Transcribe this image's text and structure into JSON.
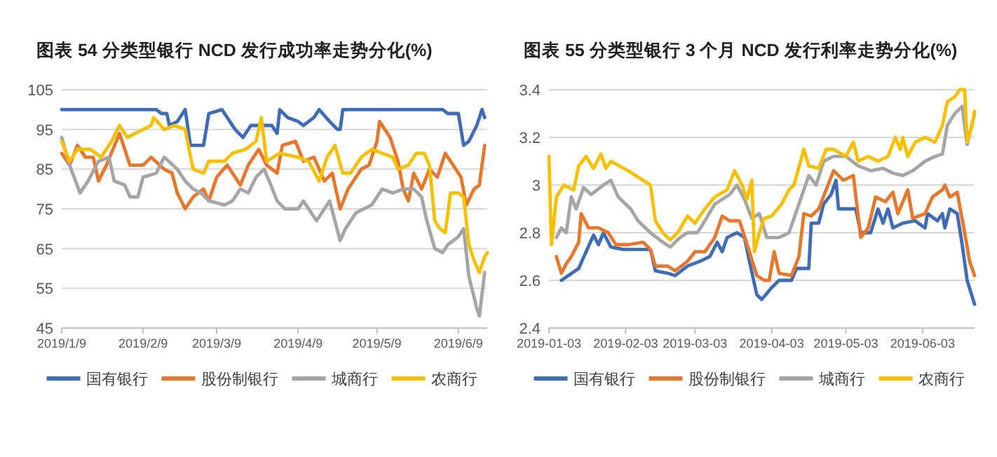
{
  "chart_data": [
    {
      "type": "line",
      "title": "图表 54 分类型银行 NCD 发行成功率走势分化(%)",
      "xlim": [
        "2019-01-09",
        "2019-06-20"
      ],
      "xticks": [
        {
          "value": "2019-01-09",
          "label": "2019/1/9"
        },
        {
          "value": "2019-02-09",
          "label": "2019/2/9"
        },
        {
          "value": "2019-03-09",
          "label": "2019/3/9"
        },
        {
          "value": "2019-04-09",
          "label": "2019/4/9"
        },
        {
          "value": "2019-05-09",
          "label": "2019/5/9"
        },
        {
          "value": "2019-06-09",
          "label": "2019/6/9"
        }
      ],
      "ylim": [
        45,
        105
      ],
      "yticks": [
        45,
        55,
        65,
        75,
        85,
        95,
        105
      ],
      "grid": "y",
      "legend": "bottom",
      "line_style": "solid",
      "marker": "none",
      "series": [
        {
          "name": "国有银行",
          "color": "#3f6cb5",
          "x": [
            "2019-01-09",
            "2019-02-14",
            "2019-02-16",
            "2019-02-18",
            "2019-02-19",
            "2019-02-22",
            "2019-02-25",
            "2019-02-27",
            "2019-03-04",
            "2019-03-06",
            "2019-03-11",
            "2019-03-16",
            "2019-03-19",
            "2019-03-22",
            "2019-03-30",
            "2019-04-01",
            "2019-04-02",
            "2019-04-05",
            "2019-04-09",
            "2019-04-11",
            "2019-04-15",
            "2019-04-17",
            "2019-04-21",
            "2019-04-24",
            "2019-04-25",
            "2019-04-26",
            "2019-06-03",
            "2019-06-05",
            "2019-06-09",
            "2019-06-11",
            "2019-06-13",
            "2019-06-16",
            "2019-06-18",
            "2019-06-19"
          ],
          "values": [
            100,
            100,
            99,
            99,
            96,
            97,
            100,
            91,
            91,
            99,
            100,
            95,
            93,
            96,
            96,
            94,
            100,
            98,
            97,
            96,
            98,
            100,
            97,
            95,
            95,
            100,
            100,
            99,
            99,
            91,
            92,
            96,
            100,
            98
          ]
        },
        {
          "name": "股份制银行",
          "color": "#e8772e",
          "x": [
            "2019-01-09",
            "2019-01-12",
            "2019-01-15",
            "2019-01-18",
            "2019-01-21",
            "2019-01-23",
            "2019-01-26",
            "2019-01-31",
            "2019-02-04",
            "2019-02-09",
            "2019-02-12",
            "2019-02-17",
            "2019-02-20",
            "2019-02-22",
            "2019-02-25",
            "2019-02-28",
            "2019-03-04",
            "2019-03-06",
            "2019-03-09",
            "2019-03-13",
            "2019-03-16",
            "2019-03-18",
            "2019-03-21",
            "2019-03-25",
            "2019-03-28",
            "2019-04-01",
            "2019-04-03",
            "2019-04-08",
            "2019-04-11",
            "2019-04-15",
            "2019-04-19",
            "2019-04-22",
            "2019-04-25",
            "2019-04-28",
            "2019-05-03",
            "2019-05-06",
            "2019-05-09",
            "2019-05-10",
            "2019-05-14",
            "2019-05-17",
            "2019-05-19",
            "2019-05-21",
            "2019-05-23",
            "2019-05-26",
            "2019-05-29",
            "2019-06-01",
            "2019-06-04",
            "2019-06-07",
            "2019-06-10",
            "2019-06-12",
            "2019-06-15",
            "2019-06-17",
            "2019-06-19"
          ],
          "values": [
            89,
            86,
            91,
            88,
            88,
            82,
            86,
            94,
            86,
            86,
            88,
            85,
            84,
            79,
            75,
            78,
            80,
            77,
            83,
            86,
            83,
            81,
            86,
            90,
            86,
            84,
            91,
            92,
            87,
            88,
            82,
            84,
            75,
            80,
            85,
            86,
            92,
            97,
            93,
            87,
            80,
            77,
            84,
            80,
            85,
            83,
            89,
            86,
            83,
            76,
            80,
            81,
            91
          ]
        },
        {
          "name": "城商行",
          "color": "#a5a5a5",
          "x": [
            "2019-01-09",
            "2019-01-12",
            "2019-01-16",
            "2019-01-19",
            "2019-01-23",
            "2019-01-27",
            "2019-01-29",
            "2019-02-02",
            "2019-02-04",
            "2019-02-07",
            "2019-02-09",
            "2019-02-14",
            "2019-02-17",
            "2019-02-22",
            "2019-02-25",
            "2019-02-28",
            "2019-03-03",
            "2019-03-06",
            "2019-03-12",
            "2019-03-15",
            "2019-03-18",
            "2019-03-21",
            "2019-03-24",
            "2019-03-27",
            "2019-03-29",
            "2019-04-01",
            "2019-04-04",
            "2019-04-09",
            "2019-04-11",
            "2019-04-14",
            "2019-04-16",
            "2019-04-19",
            "2019-04-21",
            "2019-04-25",
            "2019-04-27",
            "2019-05-01",
            "2019-05-07",
            "2019-05-11",
            "2019-05-15",
            "2019-05-19",
            "2019-05-23",
            "2019-05-26",
            "2019-05-28",
            "2019-05-31",
            "2019-06-03",
            "2019-06-05",
            "2019-06-09",
            "2019-06-11",
            "2019-06-13",
            "2019-06-16",
            "2019-06-17",
            "2019-06-19"
          ],
          "values": [
            93,
            86,
            79,
            82,
            87,
            88,
            82,
            81,
            78,
            78,
            83,
            84,
            88,
            85,
            82,
            80,
            79,
            77,
            76,
            77,
            80,
            79,
            83,
            85,
            82,
            77,
            75,
            75,
            77,
            74,
            72,
            75,
            77,
            67,
            70,
            74,
            76,
            80,
            79,
            80,
            80,
            78,
            72,
            65,
            64,
            66,
            68,
            70,
            58,
            50,
            48,
            59
          ]
        },
        {
          "name": "农商行",
          "color": "#f5c000",
          "x": [
            "2019-01-09",
            "2019-01-12",
            "2019-01-15",
            "2019-01-20",
            "2019-01-24",
            "2019-01-28",
            "2019-01-31",
            "2019-02-03",
            "2019-02-09",
            "2019-02-12",
            "2019-02-13",
            "2019-02-17",
            "2019-02-21",
            "2019-02-25",
            "2019-02-28",
            "2019-03-04",
            "2019-03-06",
            "2019-03-12",
            "2019-03-15",
            "2019-03-20",
            "2019-03-24",
            "2019-03-26",
            "2019-03-28",
            "2019-04-02",
            "2019-04-09",
            "2019-04-13",
            "2019-04-17",
            "2019-04-20",
            "2019-04-23",
            "2019-04-26",
            "2019-04-29",
            "2019-05-03",
            "2019-05-07",
            "2019-05-11",
            "2019-05-15",
            "2019-05-17",
            "2019-05-21",
            "2019-05-24",
            "2019-05-27",
            "2019-05-29",
            "2019-05-31",
            "2019-06-02",
            "2019-06-04",
            "2019-06-06",
            "2019-06-09",
            "2019-06-11",
            "2019-06-13",
            "2019-06-15",
            "2019-06-17",
            "2019-06-19",
            "2019-06-20"
          ],
          "values": [
            92,
            87,
            90,
            90,
            88,
            92,
            96,
            93,
            95,
            96,
            98,
            95,
            96,
            95,
            85,
            84,
            87,
            87,
            89,
            90,
            92,
            98,
            87,
            89,
            88,
            87,
            82,
            88,
            91,
            84,
            84,
            88,
            90,
            89,
            88,
            85,
            86,
            89,
            89,
            86,
            72,
            70,
            69,
            79,
            79,
            78,
            66,
            62,
            59,
            63,
            64
          ]
        }
      ]
    },
    {
      "type": "line",
      "title": "图表 55 分类型银行 3 个月 NCD 发行利率走势分化(%)",
      "xlim": [
        "2019-01-03",
        "2019-06-24"
      ],
      "xticks": [
        {
          "value": "2019-01-03",
          "label": "2019-01-03"
        },
        {
          "value": "2019-02-03",
          "label": "2019-02-03"
        },
        {
          "value": "2019-03-03",
          "label": "2019-03-03"
        },
        {
          "value": "2019-04-03",
          "label": "2019-04-03"
        },
        {
          "value": "2019-05-03",
          "label": "2019-05-03"
        },
        {
          "value": "2019-06-03",
          "label": "2019-06-03"
        }
      ],
      "ylim": [
        2.4,
        3.4
      ],
      "yticks": [
        {
          "value": 2.4,
          "label": "2.4"
        },
        {
          "value": 2.6,
          "label": "2.6"
        },
        {
          "value": 2.8,
          "label": "2.8"
        },
        {
          "value": 3,
          "label": "3"
        },
        {
          "value": 3.2,
          "label": "3.2"
        },
        {
          "value": 3.4,
          "label": "3.4"
        }
      ],
      "grid": "y",
      "legend": "bottom",
      "line_style": "solid",
      "marker": "none",
      "series": [
        {
          "name": "国有银行",
          "color": "#3f6cb5",
          "x": [
            "2019-01-08",
            "2019-01-15",
            "2019-01-21",
            "2019-01-23",
            "2019-01-25",
            "2019-01-28",
            "2019-02-02",
            "2019-02-13",
            "2019-02-15",
            "2019-02-20",
            "2019-02-23",
            "2019-02-28",
            "2019-03-05",
            "2019-03-09",
            "2019-03-12",
            "2019-03-14",
            "2019-03-16",
            "2019-03-20",
            "2019-03-23",
            "2019-03-25",
            "2019-03-28",
            "2019-03-30",
            "2019-04-03",
            "2019-04-06",
            "2019-04-11",
            "2019-04-13",
            "2019-04-18",
            "2019-04-19",
            "2019-04-22",
            "2019-04-24",
            "2019-04-27",
            "2019-04-29",
            "2019-04-30",
            "2019-05-03",
            "2019-05-07",
            "2019-05-09",
            "2019-05-13",
            "2019-05-16",
            "2019-05-18",
            "2019-05-20",
            "2019-05-22",
            "2019-05-26",
            "2019-05-31",
            "2019-06-04",
            "2019-06-05",
            "2019-06-09",
            "2019-06-11",
            "2019-06-12",
            "2019-06-14",
            "2019-06-17",
            "2019-06-19",
            "2019-06-21",
            "2019-06-24"
          ],
          "values": [
            2.6,
            2.65,
            2.79,
            2.75,
            2.8,
            2.74,
            2.73,
            2.73,
            2.64,
            2.63,
            2.62,
            2.66,
            2.68,
            2.7,
            2.76,
            2.72,
            2.78,
            2.8,
            2.78,
            2.68,
            2.54,
            2.52,
            2.57,
            2.6,
            2.6,
            2.65,
            2.65,
            2.84,
            2.84,
            2.92,
            2.96,
            3.02,
            2.9,
            2.9,
            2.9,
            2.8,
            2.8,
            2.9,
            2.84,
            2.9,
            2.82,
            2.84,
            2.85,
            2.82,
            2.88,
            2.85,
            2.88,
            2.82,
            2.9,
            2.88,
            2.75,
            2.6,
            2.5
          ]
        },
        {
          "name": "股份制银行",
          "color": "#e8772e",
          "x": [
            "2019-01-06",
            "2019-01-08",
            "2019-01-10",
            "2019-01-12",
            "2019-01-15",
            "2019-01-16",
            "2019-01-19",
            "2019-01-23",
            "2019-01-27",
            "2019-01-30",
            "2019-02-04",
            "2019-02-10",
            "2019-02-13",
            "2019-02-15",
            "2019-02-20",
            "2019-02-23",
            "2019-02-28",
            "2019-03-03",
            "2019-03-07",
            "2019-03-11",
            "2019-03-14",
            "2019-03-17",
            "2019-03-21",
            "2019-03-25",
            "2019-03-28",
            "2019-03-31",
            "2019-04-02",
            "2019-04-04",
            "2019-04-06",
            "2019-04-11",
            "2019-04-14",
            "2019-04-16",
            "2019-04-19",
            "2019-04-22",
            "2019-04-25",
            "2019-04-28",
            "2019-05-02",
            "2019-05-06",
            "2019-05-09",
            "2019-05-12",
            "2019-05-15",
            "2019-05-19",
            "2019-05-22",
            "2019-05-24",
            "2019-05-28",
            "2019-05-30",
            "2019-06-04",
            "2019-06-07",
            "2019-06-11",
            "2019-06-12",
            "2019-06-14",
            "2019-06-17",
            "2019-06-20",
            "2019-06-22",
            "2019-06-24"
          ],
          "values": [
            2.7,
            2.63,
            2.67,
            2.7,
            2.76,
            2.88,
            2.82,
            2.82,
            2.8,
            2.75,
            2.75,
            2.76,
            2.73,
            2.66,
            2.66,
            2.64,
            2.68,
            2.72,
            2.72,
            2.78,
            2.87,
            2.85,
            2.85,
            2.72,
            2.62,
            2.6,
            2.6,
            2.72,
            2.63,
            2.62,
            2.7,
            2.88,
            2.87,
            2.9,
            2.98,
            3.06,
            3.02,
            3.04,
            2.78,
            2.82,
            2.95,
            2.93,
            2.97,
            2.88,
            2.98,
            2.86,
            2.88,
            2.95,
            2.98,
            3,
            2.95,
            2.97,
            2.8,
            2.68,
            2.62
          ]
        },
        {
          "name": "城商行",
          "color": "#a5a5a5",
          "x": [
            "2019-01-06",
            "2019-01-08",
            "2019-01-10",
            "2019-01-12",
            "2019-01-14",
            "2019-01-17",
            "2019-01-20",
            "2019-01-25",
            "2019-01-28",
            "2019-01-31",
            "2019-02-03",
            "2019-02-05",
            "2019-02-08",
            "2019-02-13",
            "2019-02-18",
            "2019-02-21",
            "2019-02-25",
            "2019-02-28",
            "2019-03-04",
            "2019-03-07",
            "2019-03-11",
            "2019-03-17",
            "2019-03-20",
            "2019-03-23",
            "2019-03-26",
            "2019-03-29",
            "2019-04-01",
            "2019-04-06",
            "2019-04-10",
            "2019-04-14",
            "2019-04-18",
            "2019-04-21",
            "2019-04-24",
            "2019-04-28",
            "2019-05-03",
            "2019-05-08",
            "2019-05-13",
            "2019-05-18",
            "2019-05-22",
            "2019-05-26",
            "2019-05-30",
            "2019-06-04",
            "2019-06-08",
            "2019-06-11",
            "2019-06-13",
            "2019-06-16",
            "2019-06-19",
            "2019-06-21",
            "2019-06-24"
          ],
          "values": [
            2.78,
            2.82,
            2.8,
            2.95,
            2.9,
            2.99,
            2.96,
            3,
            3.02,
            2.95,
            2.92,
            2.9,
            2.85,
            2.8,
            2.76,
            2.74,
            2.78,
            2.8,
            2.8,
            2.85,
            2.92,
            2.96,
            3,
            2.94,
            2.86,
            2.88,
            2.78,
            2.78,
            2.8,
            2.92,
            3.04,
            3,
            3.1,
            3.12,
            3.12,
            3.08,
            3.06,
            3.07,
            3.05,
            3.04,
            3.06,
            3.1,
            3.12,
            3.13,
            3.25,
            3.3,
            3.33,
            3.17,
            3.3
          ]
        },
        {
          "name": "农商行",
          "color": "#f5c000",
          "x": [
            "2019-01-03",
            "2019-01-04",
            "2019-01-06",
            "2019-01-09",
            "2019-01-13",
            "2019-01-15",
            "2019-01-18",
            "2019-01-21",
            "2019-01-24",
            "2019-01-26",
            "2019-01-28",
            "2019-02-04",
            "2019-02-13",
            "2019-02-15",
            "2019-02-18",
            "2019-02-21",
            "2019-02-24",
            "2019-02-28",
            "2019-03-03",
            "2019-03-07",
            "2019-03-11",
            "2019-03-16",
            "2019-03-19",
            "2019-03-22",
            "2019-03-24",
            "2019-03-26",
            "2019-03-27",
            "2019-03-29",
            "2019-03-31",
            "2019-04-03",
            "2019-04-07",
            "2019-04-10",
            "2019-04-12",
            "2019-04-16",
            "2019-04-18",
            "2019-04-22",
            "2019-04-25",
            "2019-04-28",
            "2019-05-03",
            "2019-05-06",
            "2019-05-08",
            "2019-05-12",
            "2019-05-16",
            "2019-05-20",
            "2019-05-23",
            "2019-05-25",
            "2019-05-26",
            "2019-05-28",
            "2019-05-31",
            "2019-06-04",
            "2019-06-08",
            "2019-06-11",
            "2019-06-13",
            "2019-06-16",
            "2019-06-18",
            "2019-06-20",
            "2019-06-21",
            "2019-06-23",
            "2019-06-24"
          ],
          "values": [
            3.12,
            2.75,
            2.95,
            3,
            2.98,
            3.08,
            3.12,
            3.07,
            3.13,
            3.07,
            3.1,
            3.06,
            3,
            2.85,
            2.8,
            2.77,
            2.8,
            2.87,
            2.84,
            2.9,
            2.95,
            2.98,
            3.06,
            3,
            2.94,
            3.02,
            2.72,
            2.8,
            2.86,
            2.87,
            2.92,
            2.98,
            3,
            3.15,
            3.08,
            3.07,
            3.15,
            3.15,
            3.12,
            3.18,
            3.1,
            3.12,
            3.1,
            3.12,
            3.2,
            3.15,
            3.2,
            3.12,
            3.18,
            3.2,
            3.18,
            3.25,
            3.35,
            3.37,
            3.4,
            3.4,
            3.18,
            3.25,
            3.31
          ]
        }
      ]
    }
  ]
}
